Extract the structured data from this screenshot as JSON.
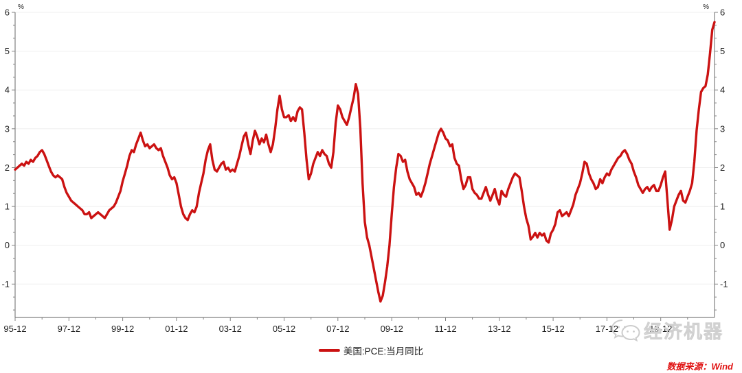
{
  "chart_data": {
    "type": "line",
    "title": "",
    "y_axis_unit": "%",
    "y_ticks": [
      -1,
      0,
      1,
      2,
      3,
      4,
      5,
      6
    ],
    "ylim": [
      -1.86,
      6
    ],
    "grid": "horizontal",
    "legend_position": "bottom-center",
    "x_tick_labels": [
      "95-12",
      "97-12",
      "99-12",
      "01-12",
      "03-12",
      "05-12",
      "07-12",
      "09-12",
      "11-12",
      "13-12",
      "15-12",
      "17-12",
      "19-12"
    ],
    "series": [
      {
        "name": "美国:PCE:当月同比",
        "color": "#cb1212",
        "start": "1995-12",
        "freq": "monthly",
        "values": [
          1.95,
          2.0,
          2.05,
          2.1,
          2.05,
          2.15,
          2.1,
          2.2,
          2.15,
          2.25,
          2.3,
          2.4,
          2.45,
          2.35,
          2.2,
          2.05,
          1.9,
          1.8,
          1.75,
          1.8,
          1.75,
          1.7,
          1.5,
          1.35,
          1.25,
          1.15,
          1.1,
          1.05,
          1.0,
          0.95,
          0.9,
          0.8,
          0.8,
          0.85,
          0.7,
          0.75,
          0.8,
          0.85,
          0.8,
          0.75,
          0.7,
          0.8,
          0.9,
          0.95,
          1.0,
          1.1,
          1.25,
          1.4,
          1.65,
          1.85,
          2.05,
          2.3,
          2.45,
          2.4,
          2.6,
          2.75,
          2.9,
          2.7,
          2.55,
          2.6,
          2.5,
          2.55,
          2.6,
          2.5,
          2.45,
          2.5,
          2.3,
          2.15,
          2.0,
          1.8,
          1.7,
          1.75,
          1.6,
          1.3,
          1.0,
          0.8,
          0.7,
          0.65,
          0.8,
          0.9,
          0.85,
          1.0,
          1.35,
          1.6,
          1.85,
          2.2,
          2.45,
          2.6,
          2.2,
          1.95,
          1.9,
          2.0,
          2.1,
          2.15,
          1.95,
          2.0,
          1.9,
          1.95,
          1.9,
          2.1,
          2.3,
          2.55,
          2.8,
          2.9,
          2.6,
          2.35,
          2.7,
          2.95,
          2.8,
          2.6,
          2.75,
          2.65,
          2.85,
          2.6,
          2.4,
          2.6,
          3.0,
          3.5,
          3.85,
          3.5,
          3.3,
          3.3,
          3.35,
          3.2,
          3.3,
          3.2,
          3.45,
          3.55,
          3.5,
          2.9,
          2.2,
          1.7,
          1.85,
          2.1,
          2.25,
          2.4,
          2.3,
          2.45,
          2.35,
          2.3,
          2.1,
          2.0,
          2.4,
          3.15,
          3.6,
          3.5,
          3.3,
          3.2,
          3.1,
          3.3,
          3.55,
          3.8,
          4.15,
          3.9,
          3.0,
          1.6,
          0.6,
          0.2,
          0.0,
          -0.3,
          -0.6,
          -0.9,
          -1.2,
          -1.45,
          -1.3,
          -0.95,
          -0.55,
          0.0,
          0.8,
          1.5,
          2.0,
          2.35,
          2.3,
          2.15,
          2.2,
          1.9,
          1.7,
          1.6,
          1.5,
          1.3,
          1.35,
          1.25,
          1.4,
          1.6,
          1.85,
          2.1,
          2.3,
          2.5,
          2.7,
          2.9,
          3.0,
          2.9,
          2.75,
          2.7,
          2.55,
          2.6,
          2.25,
          2.1,
          2.05,
          1.7,
          1.45,
          1.55,
          1.75,
          1.75,
          1.45,
          1.35,
          1.3,
          1.2,
          1.2,
          1.35,
          1.5,
          1.3,
          1.15,
          1.3,
          1.45,
          1.2,
          1.05,
          1.4,
          1.3,
          1.25,
          1.45,
          1.6,
          1.75,
          1.85,
          1.8,
          1.75,
          1.4,
          1.0,
          0.7,
          0.5,
          0.15,
          0.22,
          0.32,
          0.2,
          0.32,
          0.25,
          0.3,
          0.12,
          0.07,
          0.3,
          0.4,
          0.55,
          0.85,
          0.9,
          0.75,
          0.8,
          0.85,
          0.75,
          0.9,
          1.05,
          1.3,
          1.45,
          1.6,
          1.85,
          2.15,
          2.1,
          1.85,
          1.7,
          1.6,
          1.45,
          1.5,
          1.7,
          1.6,
          1.75,
          1.85,
          1.8,
          1.95,
          2.05,
          2.15,
          2.25,
          2.3,
          2.4,
          2.45,
          2.35,
          2.2,
          2.1,
          1.9,
          1.75,
          1.55,
          1.45,
          1.35,
          1.45,
          1.5,
          1.4,
          1.5,
          1.55,
          1.4,
          1.4,
          1.55,
          1.75,
          1.9,
          1.15,
          0.4,
          0.65,
          1.0,
          1.15,
          1.3,
          1.4,
          1.15,
          1.1,
          1.25,
          1.4,
          1.6,
          2.15,
          2.95,
          3.5,
          3.95,
          4.05,
          4.1,
          4.4,
          4.95,
          5.55,
          5.75
        ]
      }
    ]
  },
  "legend": {
    "label": "美国:PCE:当月同比"
  },
  "watermark": {
    "text": "经济机器",
    "icon": "wechat-icon"
  },
  "source": {
    "text": "数据来源：Wind"
  },
  "colors": {
    "line": "#cb1212",
    "source_text": "#e01212",
    "watermark_text": "#d9d9d9",
    "axis": "#808080",
    "gridline": "#efefef",
    "tick_label": "#1f1f1f"
  }
}
